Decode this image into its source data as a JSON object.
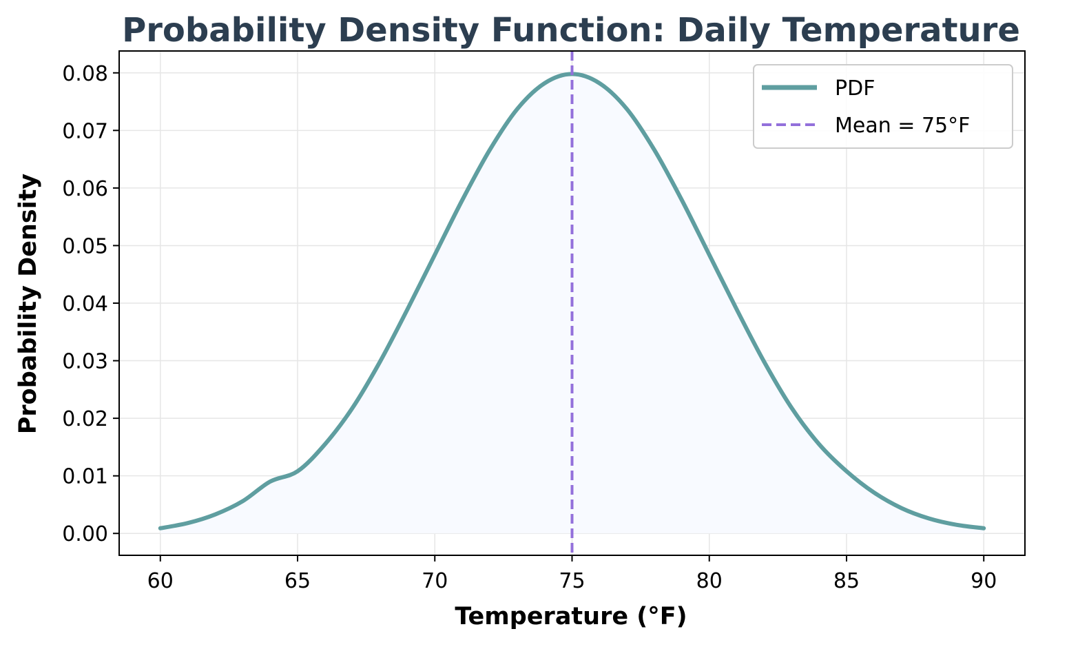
{
  "chart_data": {
    "type": "line",
    "title": "Probability Density Function: Daily Temperature",
    "xlabel": "Temperature (°F)",
    "ylabel": "Probability Density",
    "xlim": [
      58.5,
      91.5
    ],
    "ylim": [
      -0.0038,
      0.0838
    ],
    "x_ticks": [
      60,
      65,
      70,
      75,
      80,
      85,
      90
    ],
    "x_tick_labels": [
      "60",
      "65",
      "70",
      "75",
      "80",
      "85",
      "90"
    ],
    "y_ticks": [
      0.0,
      0.01,
      0.02,
      0.03,
      0.04,
      0.05,
      0.06,
      0.07,
      0.08
    ],
    "y_tick_labels": [
      "0.00",
      "0.01",
      "0.02",
      "0.03",
      "0.04",
      "0.05",
      "0.06",
      "0.07",
      "0.08"
    ],
    "grid": true,
    "legend_position": "top-right",
    "series": [
      {
        "name": "PDF",
        "kind": "line",
        "color": "#5f9ea0",
        "fill": "#f8faff",
        "x": [
          60,
          61,
          62,
          63,
          64,
          65,
          66,
          67,
          68,
          69,
          70,
          71,
          72,
          73,
          74,
          75,
          76,
          77,
          78,
          79,
          80,
          81,
          82,
          83,
          84,
          85,
          86,
          87,
          88,
          89,
          90
        ],
        "y": [
          0.0009,
          0.0018,
          0.0033,
          0.0056,
          0.009,
          0.0108,
          0.0155,
          0.0218,
          0.0298,
          0.0389,
          0.0484,
          0.0579,
          0.0666,
          0.0737,
          0.0782,
          0.0798,
          0.0782,
          0.0737,
          0.0666,
          0.0579,
          0.0484,
          0.0389,
          0.0298,
          0.0218,
          0.0155,
          0.0108,
          0.0071,
          0.0044,
          0.0026,
          0.0015,
          0.0009
        ]
      },
      {
        "name": "Mean = 75°F",
        "kind": "vline",
        "x": 75,
        "color": "#9370db",
        "dash": true
      }
    ]
  },
  "colors": {
    "title": "#2c3e50",
    "axes": "#000000",
    "grid": "#e6e6e6",
    "legend_border": "#cccccc"
  }
}
